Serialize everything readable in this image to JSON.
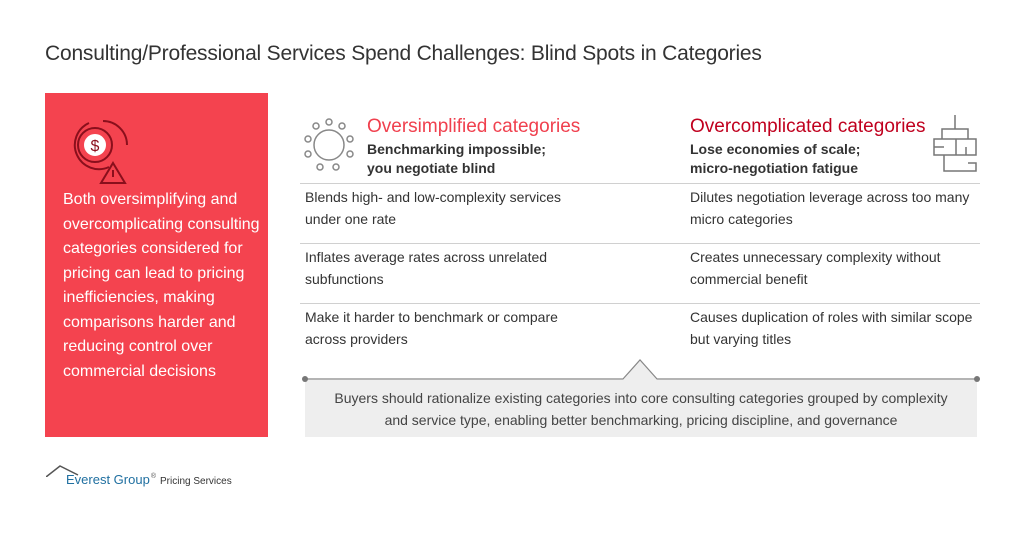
{
  "title": "Consulting/Professional Services Spend Challenges: Blind Spots in Categories",
  "panel": {
    "text": "Both oversimplifying and overcomplicating consulting categories considered for pricing can lead to pricing inefficiencies, making comparisons harder and reducing control over commercial decisions",
    "icon": "dollar-gear-warning-icon"
  },
  "columns": [
    {
      "title": "Oversimplified categories",
      "subtitle_line1": "Benchmarking impossible;",
      "subtitle_line2": "you negotiate blind",
      "color": "#f0404e",
      "icon": "circle-dots-icon",
      "rows": [
        "Blends high- and low-complexity services under one rate",
        "Inflates average rates across unrelated subfunctions",
        "Make it harder to benchmark or compare across providers"
      ]
    },
    {
      "title": "Overcomplicated categories",
      "subtitle_line1": "Lose economies of scale;",
      "subtitle_line2": "micro-negotiation fatigue",
      "color": "#c0001e",
      "icon": "maze-flow-icon",
      "rows": [
        "Dilutes negotiation leverage across too many micro categories",
        "Creates unnecessary complexity without commercial benefit",
        "Causes duplication of roles with similar scope but varying titles"
      ]
    }
  ],
  "conclusion": "Buyers should rationalize existing categories into core consulting categories grouped by complexity and service type, enabling better benchmarking, pricing discipline, and governance",
  "footer": {
    "brand": "Everest Group",
    "registered": "®",
    "service": "Pricing Services"
  }
}
